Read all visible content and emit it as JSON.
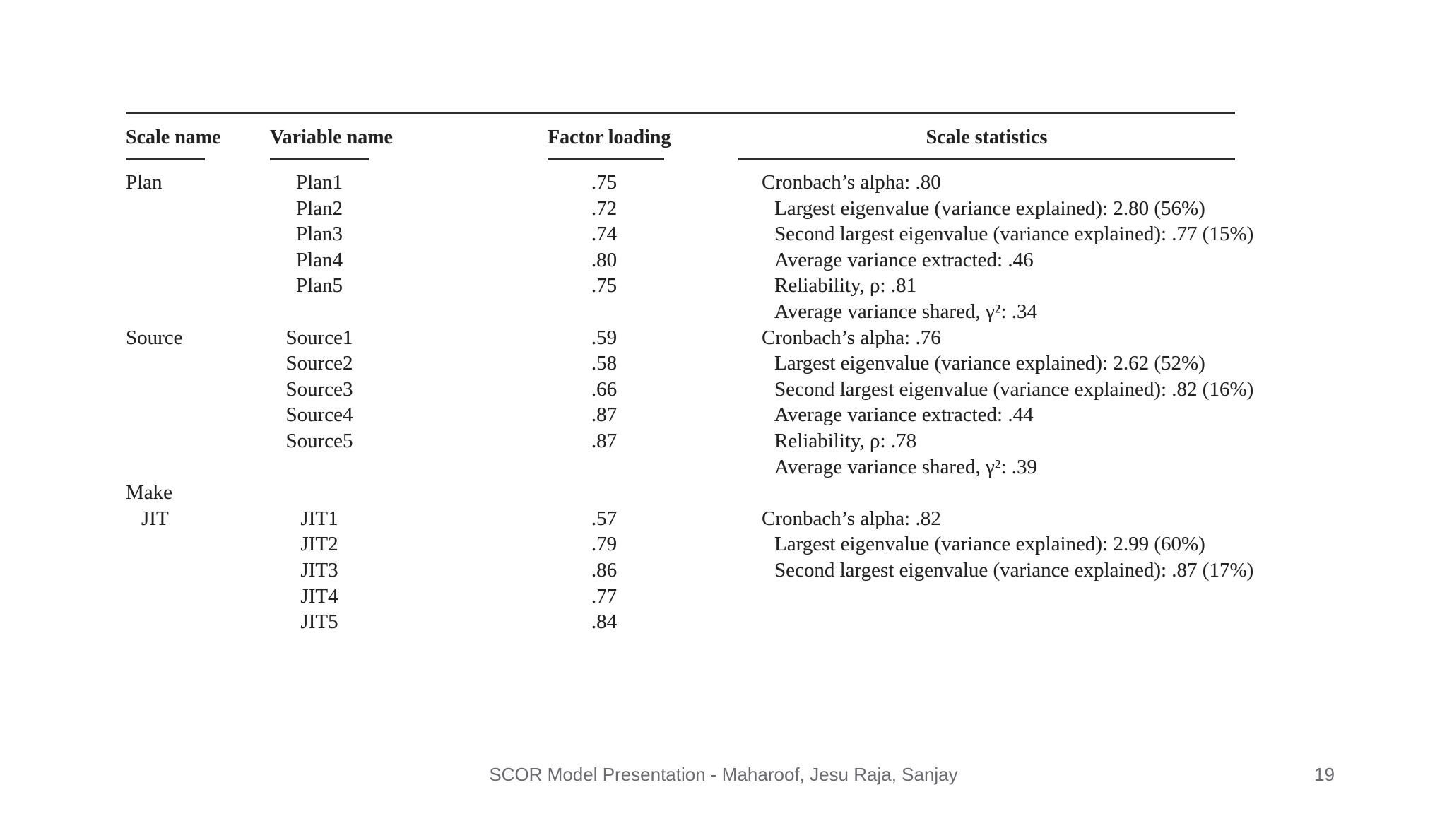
{
  "table": {
    "headers": {
      "scale_name": "Scale name",
      "variable_name": "Variable name",
      "factor_loading": "Factor loading",
      "scale_statistics": "Scale statistics"
    },
    "sections": [
      {
        "col_scale": [
          {
            "text": "Plan",
            "indent": false
          }
        ],
        "col_variables": [
          {
            "text": "Plan1"
          },
          {
            "text": "Plan2"
          },
          {
            "text": "Plan3"
          },
          {
            "text": "Plan4"
          },
          {
            "text": "Plan5"
          }
        ],
        "col_loadings": [
          ".75",
          ".72",
          ".74",
          ".80",
          ".75"
        ],
        "col_stats": [
          {
            "text": "Cronbach’s alpha: .80",
            "indent": false
          },
          {
            "text": "Largest eigenvalue (variance explained): 2.80 (56%)",
            "indent": true
          },
          {
            "text": "Second largest eigenvalue (variance explained): .77 (15%)",
            "indent": true
          },
          {
            "text": "Average variance extracted: .46",
            "indent": true
          },
          {
            "text": "Reliability, ρ: .81",
            "indent": true
          },
          {
            "text": "Average variance shared, γ²: .34",
            "indent": true
          }
        ]
      },
      {
        "col_scale": [
          {
            "text": "Source",
            "indent": false
          }
        ],
        "col_variables": [
          {
            "text": "Source1"
          },
          {
            "text": "Source2"
          },
          {
            "text": "Source3"
          },
          {
            "text": "Source4"
          },
          {
            "text": "Source5"
          }
        ],
        "col_loadings": [
          ".59",
          ".58",
          ".66",
          ".87",
          ".87"
        ],
        "col_stats": [
          {
            "text": "Cronbach’s alpha: .76",
            "indent": false
          },
          {
            "text": "Largest eigenvalue (variance explained): 2.62 (52%)",
            "indent": true
          },
          {
            "text": "Second largest eigenvalue (variance explained): .82 (16%)",
            "indent": true
          },
          {
            "text": "Average variance extracted: .44",
            "indent": true
          },
          {
            "text": "Reliability, ρ: .78",
            "indent": true
          },
          {
            "text": "Average variance shared, γ²: .39",
            "indent": true
          }
        ]
      },
      {
        "col_scale": [
          {
            "text": "Make",
            "indent": false
          },
          {
            "text": "JIT",
            "indent": true
          }
        ],
        "col_variables": [
          {
            "text": ""
          },
          {
            "text": "JIT1"
          },
          {
            "text": "JIT2"
          },
          {
            "text": "JIT3"
          },
          {
            "text": "JIT4"
          },
          {
            "text": "JIT5"
          }
        ],
        "col_loadings": [
          "",
          ".57",
          ".79",
          ".86",
          ".77",
          ".84"
        ],
        "col_stats": [
          {
            "text": "",
            "indent": false
          },
          {
            "text": "Cronbach’s alpha: .82",
            "indent": false
          },
          {
            "text": "Largest eigenvalue (variance explained): 2.99 (60%)",
            "indent": true
          },
          {
            "text": "Second largest eigenvalue (variance explained): .87 (17%)",
            "indent": true
          }
        ]
      }
    ]
  },
  "footer": {
    "title": "SCOR Model Presentation - Maharoof, Jesu Raja, Sanjay",
    "page_number": "19"
  }
}
